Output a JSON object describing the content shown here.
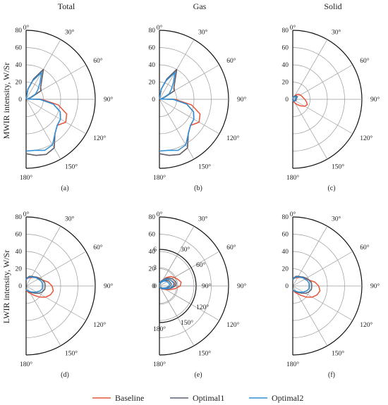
{
  "chart_data": {
    "type": "polar",
    "row_labels": [
      "MWIR intensity, W/Sr",
      "LWIR intensity, W/Sr"
    ],
    "column_titles": [
      "Total",
      "Gas",
      "Solid"
    ],
    "angle_ticks": [
      "0°",
      "30°",
      "60°",
      "90°",
      "120°",
      "150°",
      "180°"
    ],
    "radial_ticks": [
      "0",
      "20",
      "40",
      "60",
      "80"
    ],
    "radial_range": [
      0,
      80
    ],
    "inset_radial_ticks": [
      "0",
      "3",
      "6"
    ],
    "inset_radial_range": [
      0,
      6
    ],
    "legend_position": "bottom",
    "colors": {
      "Baseline": "#e8553a",
      "Optimal1": "#5a6270",
      "Optimal2": "#2f8fd8"
    },
    "legend": [
      "Baseline",
      "Optimal1",
      "Optimal2"
    ],
    "angles_deg": [
      0,
      10,
      20,
      30,
      40,
      50,
      60,
      70,
      80,
      90,
      100,
      110,
      120,
      130,
      140,
      150,
      160,
      170,
      180
    ],
    "panels": [
      {
        "tag": "(a)",
        "series": [
          {
            "name": "Baseline",
            "values": [
              0,
              12,
              25,
              40,
              28,
              22,
              20,
              6,
              2,
              18,
              38,
              50,
              53,
              47,
              52,
              65,
              68,
              66,
              63
            ]
          },
          {
            "name": "Optimal1",
            "values": [
              0,
              12,
              25,
              40,
              28,
              22,
              20,
              6,
              2,
              16,
              32,
              42,
              46,
              47,
              52,
              65,
              68,
              66,
              63
            ]
          },
          {
            "name": "Optimal2",
            "values": [
              0,
              12,
              23,
              36,
              25,
              18,
              13,
              6,
              2,
              16,
              32,
              42,
              46,
              47,
              52,
              61,
              63,
              60,
              60
            ]
          }
        ]
      },
      {
        "tag": "(b)",
        "series": [
          {
            "name": "Baseline",
            "values": [
              0,
              12,
              25,
              40,
              28,
              22,
              20,
              6,
              2,
              18,
              38,
              50,
              53,
              47,
              52,
              65,
              68,
              66,
              63
            ]
          },
          {
            "name": "Optimal1",
            "values": [
              0,
              12,
              25,
              40,
              28,
              22,
              20,
              6,
              2,
              16,
              32,
              42,
              46,
              47,
              52,
              65,
              68,
              66,
              63
            ]
          },
          {
            "name": "Optimal2",
            "values": [
              0,
              12,
              23,
              36,
              25,
              18,
              13,
              6,
              2,
              16,
              32,
              42,
              46,
              47,
              52,
              61,
              63,
              60,
              60
            ]
          }
        ]
      },
      {
        "tag": "(c)",
        "series": [
          {
            "name": "Baseline",
            "values": [
              0,
              2,
              3,
              5,
              7,
              9,
              10,
              11,
              12,
              14,
              16,
              18,
              16,
              12,
              8,
              5,
              3,
              2,
              1
            ]
          },
          {
            "name": "Optimal1",
            "values": [
              0,
              2,
              3,
              4,
              5,
              6,
              6,
              5,
              4,
              4,
              4,
              4,
              3,
              3,
              3,
              2,
              2,
              1,
              1
            ]
          },
          {
            "name": "Optimal2",
            "values": [
              0,
              2,
              3,
              3,
              4,
              4,
              5,
              4,
              3,
              3,
              3,
              3,
              3,
              2,
              2,
              2,
              2,
              1,
              1
            ]
          }
        ]
      },
      {
        "tag": "(d)",
        "series": [
          {
            "name": "Baseline",
            "values": [
              8,
              9,
              10,
              11,
              13,
              15,
              17,
              20,
              26,
              30,
              32,
              30,
              26,
              20,
              14,
              10,
              8,
              6,
              5
            ]
          },
          {
            "name": "Optimal1",
            "values": [
              8,
              10,
              12,
              13,
              14,
              16,
              18,
              20,
              22,
              22,
              22,
              20,
              17,
              13,
              10,
              8,
              6,
              5,
              4
            ]
          },
          {
            "name": "Optimal2",
            "values": [
              7,
              9,
              11,
              12,
              13,
              15,
              16,
              18,
              19,
              19,
              19,
              17,
              14,
              11,
              9,
              7,
              6,
              5,
              4
            ]
          }
        ]
      },
      {
        "tag": "(e)",
        "series": [
          {
            "name": "Baseline",
            "values": [
              1,
              3,
              5,
              6,
              9,
              12,
              14,
              16,
              18,
              17,
              13,
              9,
              6,
              4,
              3,
              2,
              1,
              1,
              1
            ]
          },
          {
            "name": "Optimal1",
            "values": [
              1,
              3,
              4,
              6,
              8,
              10,
              12,
              13,
              14,
              13,
              10,
              7,
              5,
              3,
              2,
              2,
              1,
              1,
              1
            ]
          },
          {
            "name": "Optimal2",
            "values": [
              1,
              3,
              4,
              5,
              7,
              9,
              10,
              11,
              12,
              11,
              9,
              7,
              5,
              3,
              2,
              2,
              1,
              1,
              1
            ]
          }
        ],
        "inset_series": [
          {
            "name": "Baseline",
            "values": [
              0.2,
              0.5,
              0.9,
              1.2,
              1.8,
              2.4,
              2.8,
              3.2,
              3.6,
              3.4,
              2.6,
              1.8,
              1.2,
              0.8,
              0.6,
              0.4,
              0.3,
              0.2,
              0.2
            ]
          },
          {
            "name": "Optimal1",
            "values": [
              0.2,
              0.5,
              0.8,
              1.1,
              1.6,
              2.0,
              2.4,
              2.6,
              2.8,
              2.6,
              2.0,
              1.4,
              1.0,
              0.7,
              0.5,
              0.4,
              0.3,
              0.2,
              0.2
            ]
          },
          {
            "name": "Optimal2",
            "values": [
              0.2,
              0.5,
              0.7,
              1.0,
              1.4,
              1.8,
              2.0,
              2.2,
              2.4,
              2.2,
              1.8,
              1.4,
              1.0,
              0.6,
              0.4,
              0.4,
              0.3,
              0.2,
              0.2
            ]
          }
        ]
      },
      {
        "tag": "(f)",
        "series": [
          {
            "name": "Baseline",
            "values": [
              8,
              9,
              10,
              11,
              13,
              15,
              17,
              20,
              26,
              30,
              32,
              30,
              26,
              20,
              14,
              10,
              8,
              6,
              5
            ]
          },
          {
            "name": "Optimal1",
            "values": [
              8,
              10,
              12,
              13,
              14,
              16,
              18,
              20,
              22,
              22,
              22,
              20,
              17,
              13,
              10,
              8,
              6,
              5,
              4
            ]
          },
          {
            "name": "Optimal2",
            "values": [
              7,
              9,
              11,
              12,
              13,
              15,
              16,
              18,
              19,
              19,
              19,
              17,
              14,
              11,
              9,
              7,
              6,
              5,
              4
            ]
          }
        ]
      }
    ]
  }
}
